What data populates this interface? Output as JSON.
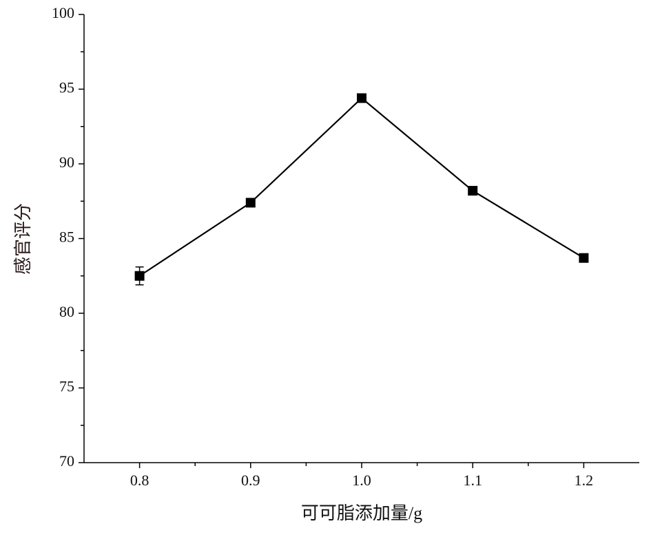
{
  "chart_data": {
    "type": "line",
    "x_label": "可可脂添加量/g",
    "y_label": "感官评分",
    "x": [
      0.8,
      0.9,
      1.0,
      1.1,
      1.2
    ],
    "series": [
      {
        "color": "#000000",
        "values": [
          82.5,
          87.4,
          94.4,
          88.2,
          83.7
        ],
        "errors": [
          0.6,
          0.2,
          0.2,
          0.2,
          0.2
        ]
      }
    ],
    "xlim": [
      0.75,
      1.25
    ],
    "xticks": [
      {
        "value": 0.8,
        "label": "0.8"
      },
      {
        "value": 0.9,
        "label": "0.9"
      },
      {
        "value": 1.0,
        "label": "1.0"
      },
      {
        "value": 1.1,
        "label": "1.1"
      },
      {
        "value": 1.2,
        "label": "1.2"
      }
    ],
    "xminorticks": [
      0.85,
      0.95,
      1.05,
      1.15
    ],
    "ylim": [
      70,
      100
    ],
    "yticks": [
      70,
      75,
      80,
      85,
      90,
      95,
      100
    ],
    "yminorticks": [
      72.5,
      77.5,
      82.5,
      87.5,
      92.5,
      97.5
    ]
  }
}
